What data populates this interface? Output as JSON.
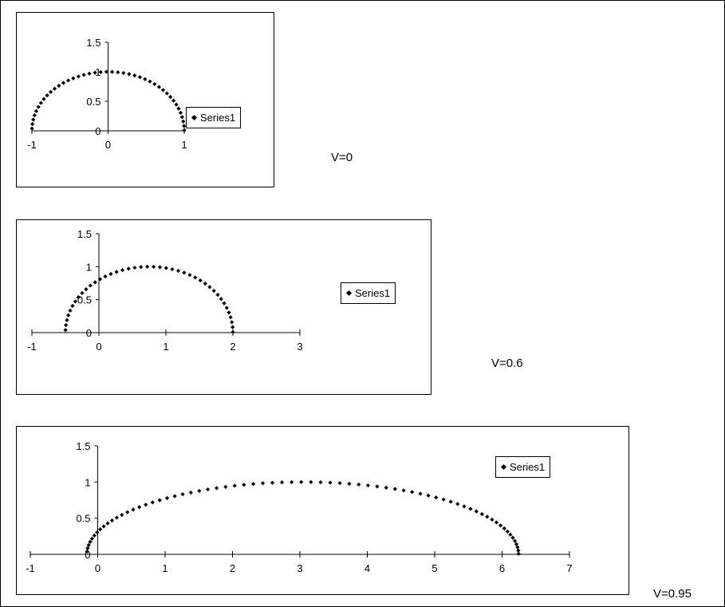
{
  "colors": {
    "marker": "#000000",
    "axis": "#000000",
    "background": "#ffffff"
  },
  "chart_data": [
    {
      "type": "scatter",
      "label": "V=0",
      "xlim": [
        -1,
        1
      ],
      "ylim": [
        0,
        1.5
      ],
      "x_ticks": [
        -1,
        0,
        1
      ],
      "y_ticks": [
        0,
        0.5,
        1,
        1.5
      ],
      "legend": "right",
      "grid": false,
      "series": [
        {
          "name": "Series1",
          "curve": {
            "v": 0,
            "points": 42
          }
        }
      ]
    },
    {
      "type": "scatter",
      "label": "V=0.6",
      "xlim": [
        -1,
        3
      ],
      "ylim": [
        0,
        1.5
      ],
      "x_ticks": [
        -1,
        0,
        1,
        2,
        3
      ],
      "y_ticks": [
        0,
        0.5,
        1,
        1.5
      ],
      "legend": "right",
      "grid": false,
      "series": [
        {
          "name": "Series1",
          "curve": {
            "v": 0.6,
            "points": 42
          }
        }
      ]
    },
    {
      "type": "scatter",
      "label": "V=0.95",
      "xlim": [
        -1,
        7
      ],
      "ylim": [
        0,
        1.5
      ],
      "x_ticks": [
        -1,
        0,
        1,
        2,
        3,
        4,
        5,
        6,
        7
      ],
      "y_ticks": [
        0,
        0.5,
        1,
        1.5
      ],
      "legend": "top-right",
      "grid": false,
      "series": [
        {
          "name": "Series1",
          "curve": {
            "v": 0.95,
            "points": 70
          }
        }
      ]
    }
  ]
}
